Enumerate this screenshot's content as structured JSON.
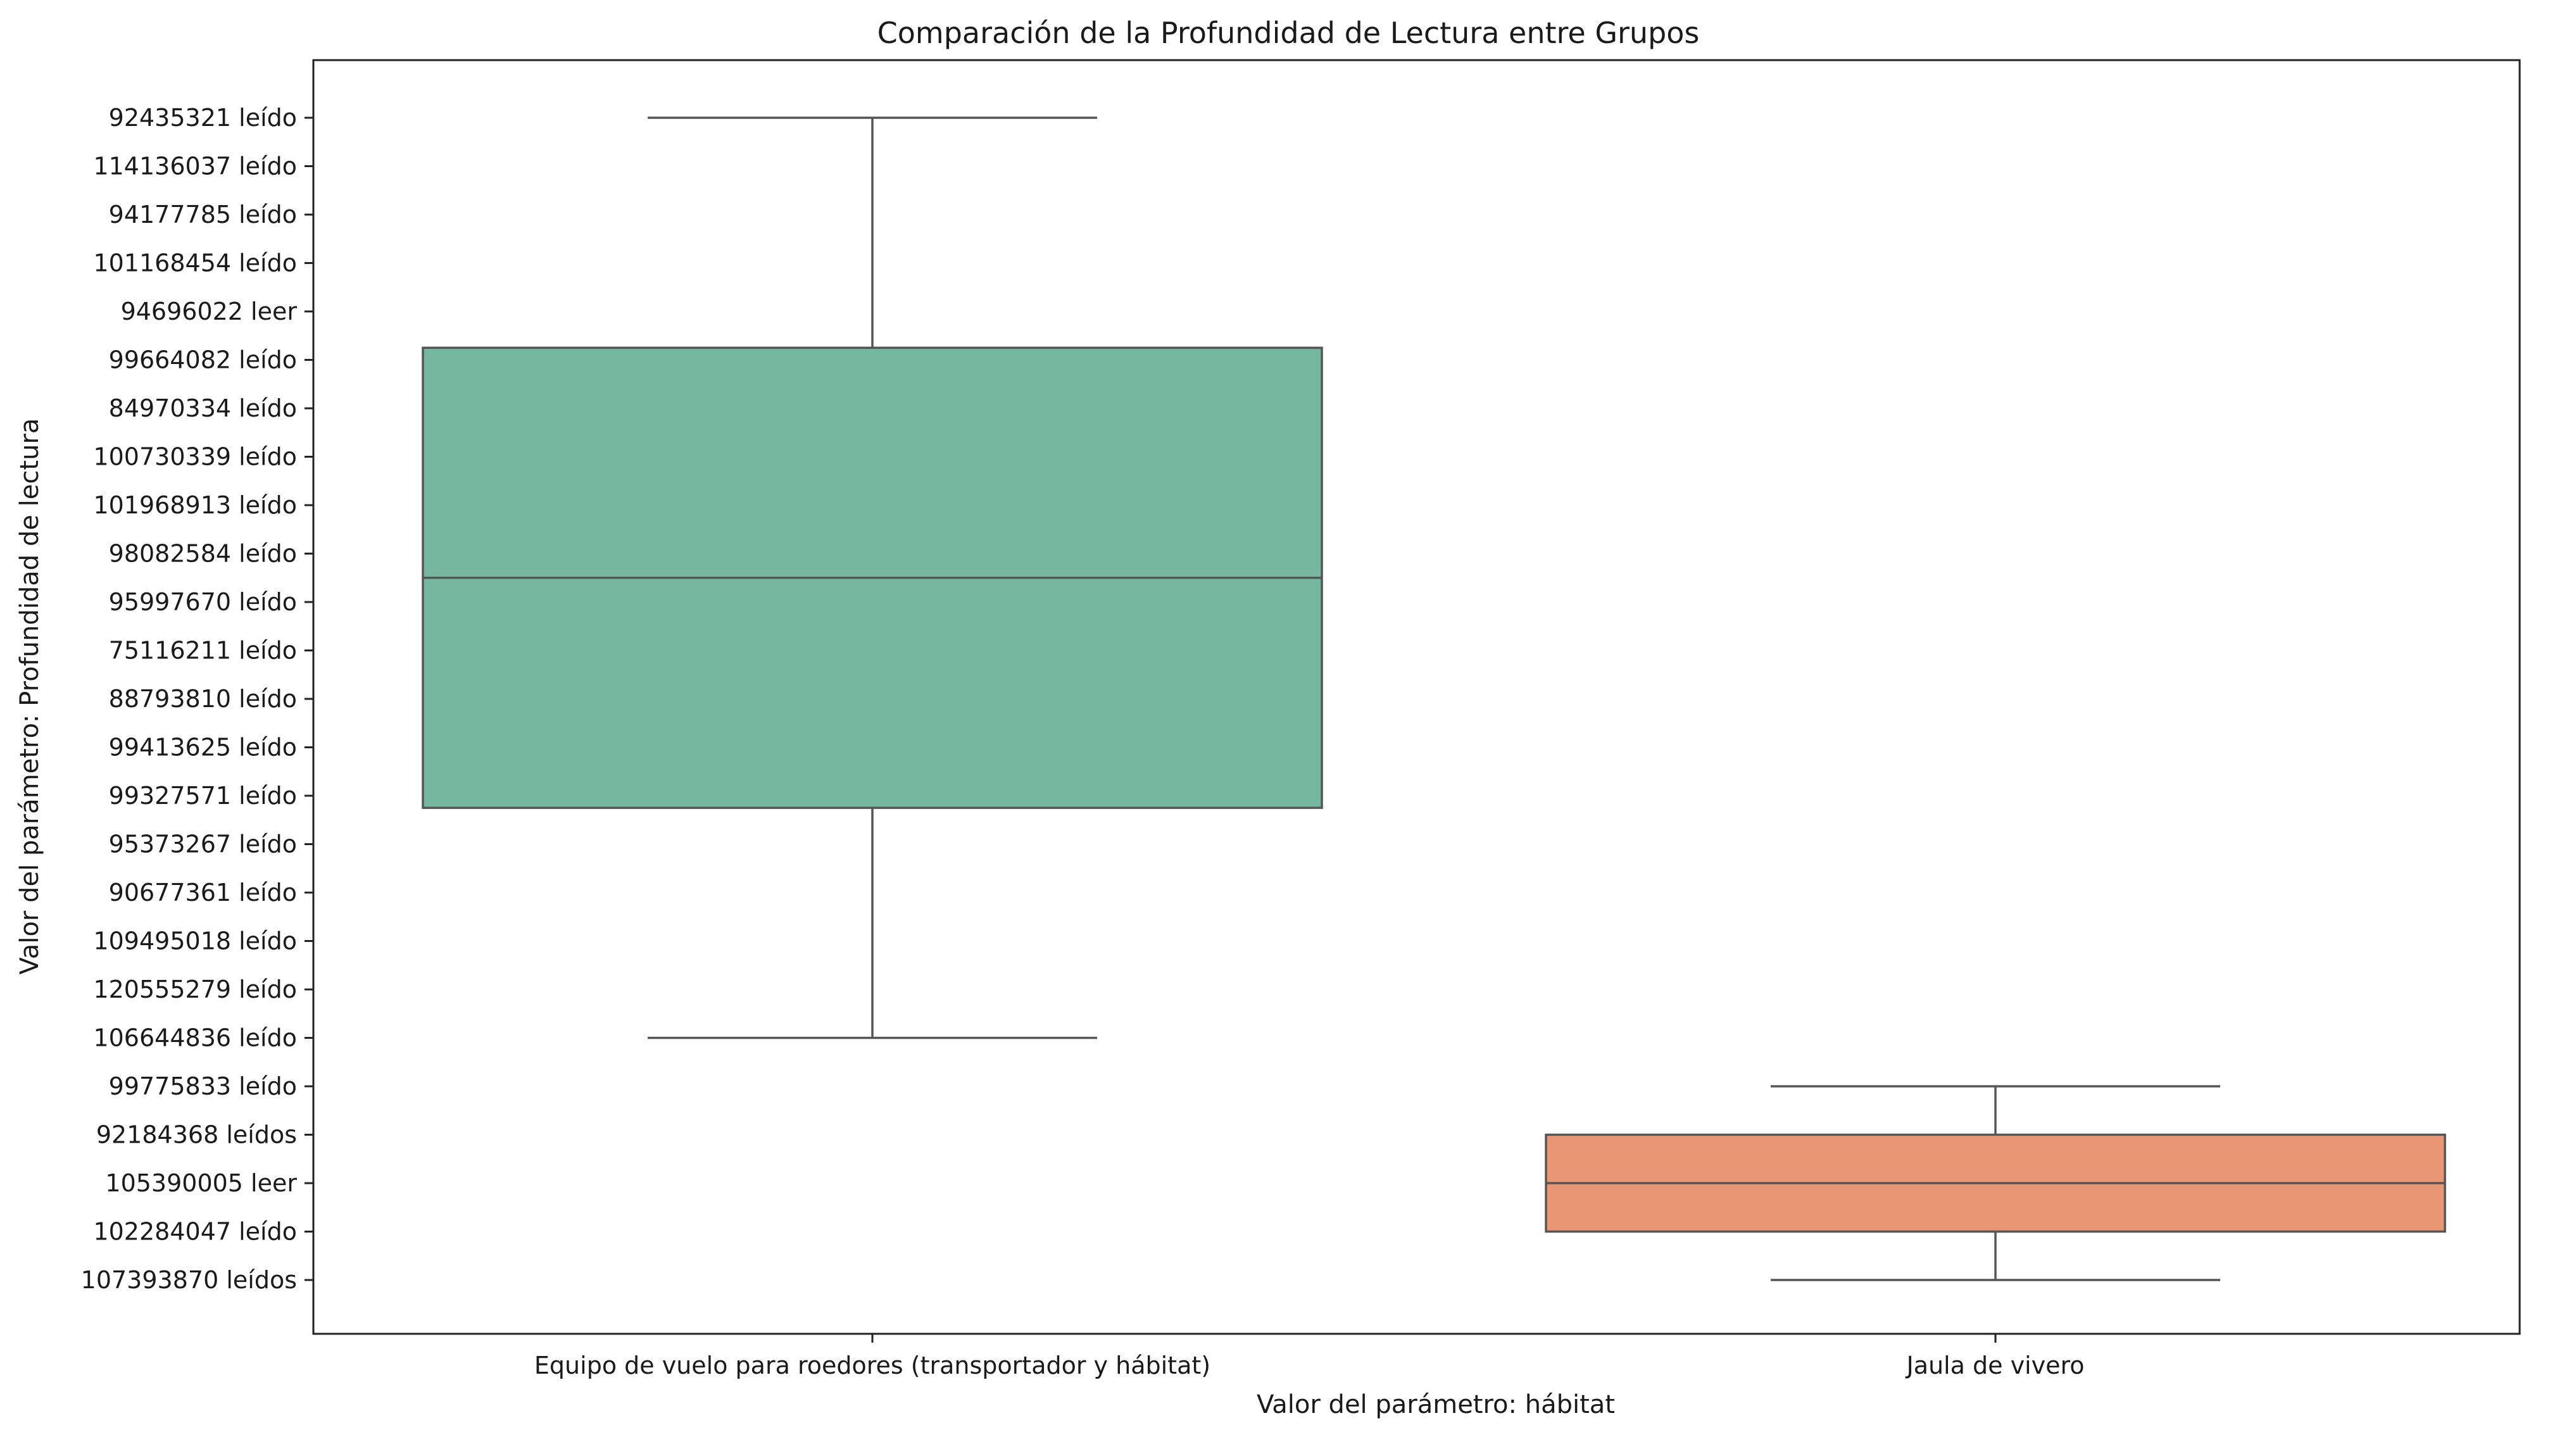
{
  "chart_data": {
    "type": "box",
    "title": "Comparación de la Profundidad de Lectura entre Grupos",
    "xlabel": "Valor del parámetro: hábitat",
    "ylabel": "Valor del parámetro: Profundidad de lectura",
    "y_categories": [
      "92435321 leído",
      "114136037 leído",
      "94177785 leído",
      "101168454 leído",
      "94696022 leer",
      "99664082 leído",
      "84970334 leído",
      "100730339 leído",
      "101968913 leído",
      "98082584 leído",
      "95997670 leído",
      "75116211 leído",
      "88793810 leído",
      "99413625 leído",
      "99327571 leído",
      "95373267 leído",
      "90677361 leído",
      "109495018 leído",
      "120555279 leído",
      "106644836 leído",
      "99775833 leído",
      "92184368 leídos",
      "105390005 leer",
      "102284047 leído",
      "107393870 leídos"
    ],
    "groups": [
      {
        "label": "Equipo de vuelo para roedores (transportador y hábitat)",
        "color": "#76b7a0",
        "whisker_low": 0,
        "q1": 4.75,
        "median": 9.5,
        "q3": 14.25,
        "whisker_high": 19
      },
      {
        "label": "Jaula de vivero",
        "color": "#e99674",
        "whisker_low": 20,
        "q1": 21,
        "median": 22,
        "q3": 23,
        "whisker_high": 24
      }
    ],
    "grid": false,
    "legend": "none"
  }
}
